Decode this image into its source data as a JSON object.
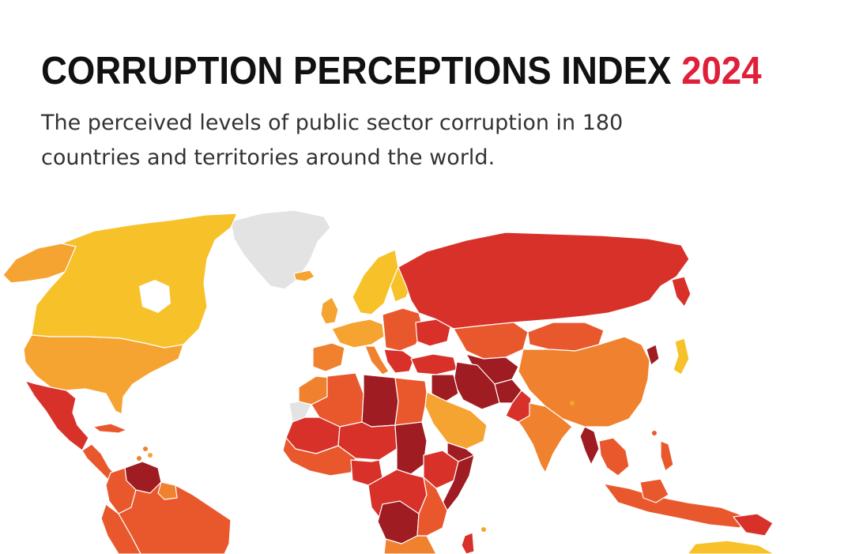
{
  "header": {
    "title_main": "CORRUPTION PERCEPTIONS INDEX",
    "title_year": "2024",
    "subtitle": "The perceived levels of public sector corruption in 180 countries and territories around the world."
  },
  "colors": {
    "title_text": "#111111",
    "year_accent": "#e0203a",
    "no_data": "#e3e3e3",
    "score_highest": "#f7c12a",
    "score_high": "#f5a331",
    "score_mid_high": "#f0812e",
    "score_mid": "#e9582d",
    "score_low": "#d8312a",
    "score_lowest": "#9e1c22",
    "border": "#ffffff"
  }
}
